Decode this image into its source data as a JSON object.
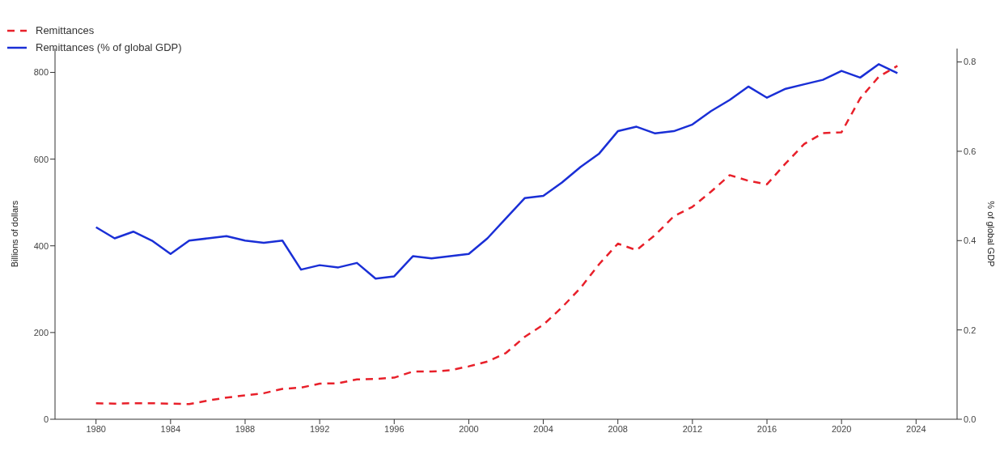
{
  "chart_data": {
    "type": "line",
    "ylabel": "Billions of dollars",
    "y2label": "% of global GDP",
    "x": [
      1980,
      1981,
      1982,
      1983,
      1984,
      1985,
      1986,
      1987,
      1988,
      1989,
      1990,
      1991,
      1992,
      1993,
      1994,
      1995,
      1996,
      1997,
      1998,
      1999,
      2000,
      2001,
      2002,
      2003,
      2004,
      2005,
      2006,
      2007,
      2008,
      2009,
      2010,
      2011,
      2012,
      2013,
      2014,
      2015,
      2016,
      2017,
      2018,
      2019,
      2020,
      2021,
      2022,
      2023
    ],
    "xlim": [
      1977.8,
      2026.2
    ],
    "xticks": [
      1980,
      1984,
      1988,
      1992,
      1996,
      2000,
      2004,
      2008,
      2012,
      2016,
      2020,
      2024
    ],
    "ylim": [
      0,
      855
    ],
    "yticks": [
      0,
      200,
      400,
      600,
      800
    ],
    "y2lim": [
      0,
      0.83
    ],
    "y2ticks": [
      {
        "value": 0,
        "label": "0.0"
      },
      0.2,
      0.4,
      0.6,
      0.8
    ],
    "series": [
      {
        "name": "Remittances",
        "color": "#e8202a",
        "line_style": "dashed",
        "values": [
          37,
          36,
          37,
          37,
          36,
          35,
          43,
          50,
          55,
          60,
          70,
          73,
          82,
          83,
          92,
          93,
          96,
          110,
          110,
          113,
          122,
          133,
          153,
          190,
          218,
          258,
          303,
          358,
          405,
          390,
          425,
          468,
          490,
          525,
          563,
          550,
          542,
          590,
          635,
          660,
          662,
          740,
          790,
          815
        ]
      },
      {
        "name": "Remittances (% of global GDP)",
        "color": "#1a2fd6",
        "line_style": "solid",
        "axis": "y2",
        "values": [
          0.43,
          0.405,
          0.42,
          0.4,
          0.37,
          0.4,
          0.405,
          0.41,
          0.4,
          0.395,
          0.4,
          0.335,
          0.345,
          0.34,
          0.35,
          0.315,
          0.32,
          0.365,
          0.36,
          0.365,
          0.37,
          0.405,
          0.45,
          0.495,
          0.5,
          0.53,
          0.565,
          0.595,
          0.645,
          0.655,
          0.64,
          0.645,
          0.66,
          0.69,
          0.715,
          0.745,
          0.72,
          0.74,
          0.75,
          0.76,
          0.78,
          0.765,
          0.795,
          0.775
        ]
      }
    ],
    "legend": "top",
    "grid": false,
    "marker": "none"
  }
}
